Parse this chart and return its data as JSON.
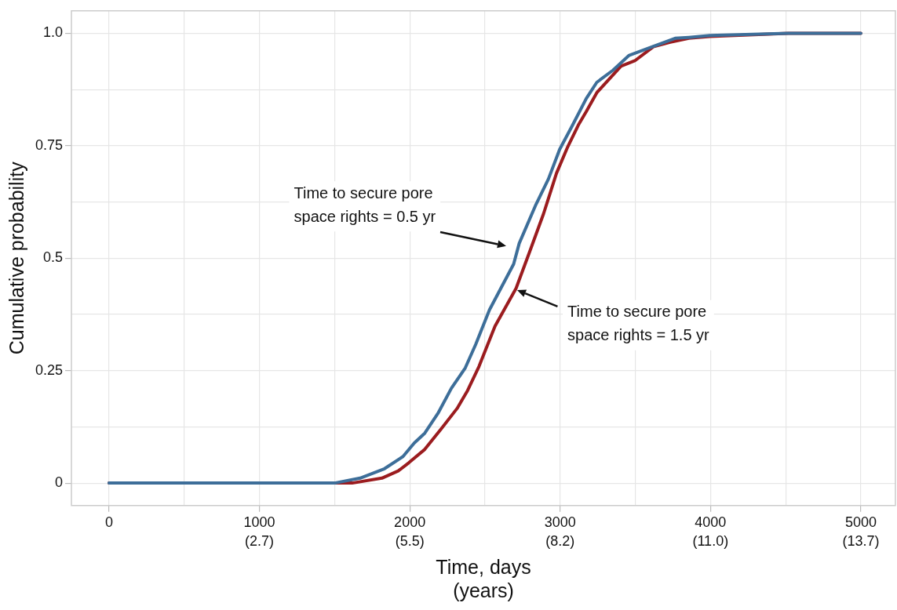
{
  "chart_data": {
    "type": "line",
    "xlabel": "Time, days",
    "x2label": "(years)",
    "x2lim": [
      -0.684,
      14.319
    ],
    "x2ticks": [
      {
        "value": 2.738,
        "label": "(2.7)"
      },
      {
        "value": 5.476,
        "label": "(5.5)"
      },
      {
        "value": 8.214,
        "label": "(8.2)"
      },
      {
        "value": 10.951,
        "label": "(11.0)"
      },
      {
        "value": 13.689,
        "label": "(13.7)"
      }
    ],
    "ylabel": "Cumulative probability",
    "xlim": [
      -250,
      5230
    ],
    "ylim": [
      -0.05,
      1.05
    ],
    "xticks": [
      0,
      {
        "value": 500,
        "label": null
      },
      1000,
      {
        "value": 1500,
        "label": null
      },
      2000,
      {
        "value": 2500,
        "label": null
      },
      3000,
      {
        "value": 3500,
        "label": null
      },
      4000,
      {
        "value": 4500,
        "label": null
      },
      5000
    ],
    "yticks": [
      0,
      {
        "value": 0.125,
        "label": null
      },
      0.25,
      {
        "value": 0.375,
        "label": null
      },
      0.5,
      {
        "value": 0.625,
        "label": null
      },
      0.75,
      {
        "value": 0.875,
        "label": null
      },
      {
        "value": 1,
        "label": "1.0"
      }
    ],
    "grid": true,
    "marker": "none",
    "line_style": "solid",
    "series": [
      {
        "color": "#3d6e99",
        "x": [
          0,
          1500,
          1670,
          1832,
          1955,
          2030,
          2100,
          2191,
          2277,
          2369,
          2438,
          2530,
          2691,
          2728,
          2836,
          2922,
          2997,
          3083,
          3174,
          3244,
          3352,
          3459,
          3620,
          3765,
          3856,
          3996,
          4517,
          5000
        ],
        "values": [
          0,
          0,
          0.011,
          0.032,
          0.059,
          0.089,
          0.111,
          0.157,
          0.211,
          0.256,
          0.308,
          0.385,
          0.487,
          0.533,
          0.617,
          0.676,
          0.742,
          0.796,
          0.855,
          0.891,
          0.918,
          0.951,
          0.971,
          0.989,
          0.991,
          0.995,
          1,
          1
        ]
      },
      {
        "color": "#9b1c1f",
        "x": [
          0,
          1617,
          1815,
          1923,
          1993,
          2100,
          2208,
          2315,
          2385,
          2460,
          2567,
          2707,
          2798,
          2890,
          2976,
          3051,
          3121,
          3174,
          3244,
          3405,
          3497,
          3620,
          3727,
          3856,
          3996,
          4517,
          5000
        ],
        "values": [
          0,
          0,
          0.011,
          0.027,
          0.045,
          0.075,
          0.12,
          0.166,
          0.206,
          0.259,
          0.349,
          0.433,
          0.515,
          0.599,
          0.689,
          0.748,
          0.796,
          0.826,
          0.868,
          0.927,
          0.939,
          0.97,
          0.98,
          0.989,
          0.993,
          1,
          1
        ]
      }
    ],
    "annotations": [
      "Time to secure pore\nspace rights = 0.5 yr",
      "Time to secure pore\nspace rights = 1.5 yr"
    ]
  }
}
